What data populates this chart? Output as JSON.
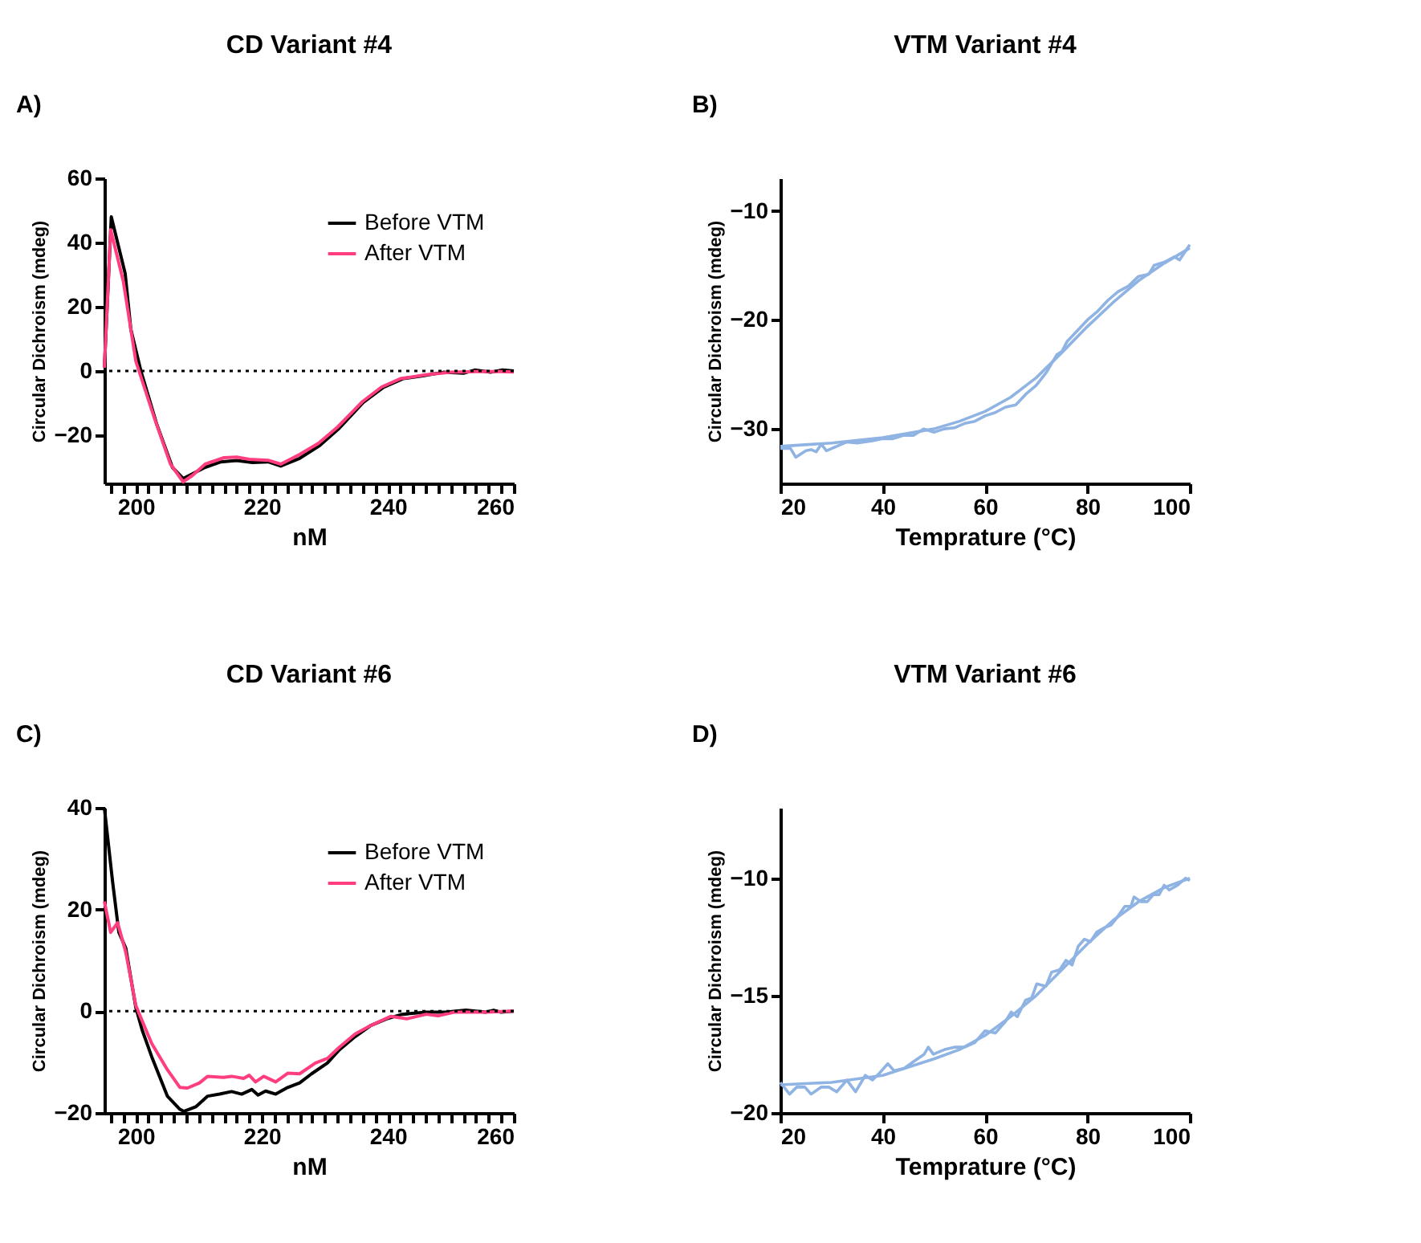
{
  "chart_data": [
    {
      "type": "line",
      "title": "CD Variant #4",
      "xlabel": "nM",
      "ylabel": "Circular Dichroism (mdeg)",
      "annotations": [
        "A)"
      ],
      "legend": "top right",
      "line_style": "solid",
      "grid": false,
      "xlim": [
        195,
        260
      ],
      "ylim": [
        -35,
        60
      ],
      "yticks": [
        -20,
        0,
        20,
        40,
        60
      ],
      "xticks": [
        {
          "value": 196,
          "label": null
        },
        {
          "value": 198,
          "label": null
        },
        200,
        {
          "value": 202,
          "label": null
        },
        {
          "value": 204,
          "label": null
        },
        {
          "value": 206,
          "label": null
        },
        {
          "value": 208,
          "label": null
        },
        {
          "value": 210,
          "label": null
        },
        {
          "value": 212,
          "label": null
        },
        {
          "value": 214,
          "label": null
        },
        {
          "value": 216,
          "label": null
        },
        {
          "value": 218,
          "label": null
        },
        220,
        {
          "value": 222,
          "label": null
        },
        {
          "value": 224,
          "label": null
        },
        {
          "value": 226,
          "label": null
        },
        {
          "value": 228,
          "label": null
        },
        {
          "value": 230,
          "label": null
        },
        {
          "value": 232,
          "label": null
        },
        {
          "value": 234,
          "label": null
        },
        {
          "value": 236,
          "label": null
        },
        {
          "value": 238,
          "label": null
        },
        240,
        {
          "value": 242,
          "label": null
        },
        {
          "value": 244,
          "label": null
        },
        {
          "value": 246,
          "label": null
        },
        {
          "value": 248,
          "label": null
        },
        {
          "value": 250,
          "label": null
        },
        {
          "value": 252,
          "label": null
        },
        {
          "value": 254,
          "label": null
        },
        {
          "value": 256,
          "label": null
        },
        {
          "value": 258,
          "label": null
        },
        260
      ],
      "ref_lines": [
        {
          "axis": "y",
          "value": 0,
          "label": null,
          "color": "#000000",
          "line_style": "dotted"
        }
      ],
      "series": [
        {
          "name": "Before VTM",
          "color": "#000000",
          "x": [
            195,
            196.1,
            198.3,
            199.2,
            200.8,
            203.3,
            205.8,
            207.5,
            209,
            211,
            213.5,
            216,
            218.5,
            221,
            223,
            226,
            229.2,
            232.3,
            236.1,
            239.3,
            242.4,
            245.6,
            248.8,
            252,
            253.8,
            256.3,
            258.2,
            260
          ],
          "values": [
            1,
            48,
            30.4,
            13,
            0,
            -16.5,
            -30,
            -33.5,
            -32,
            -30,
            -28.3,
            -27.9,
            -28.5,
            -28.3,
            -29.6,
            -27.2,
            -23.2,
            -17.8,
            -9.8,
            -5.1,
            -2.4,
            -1.5,
            -0.4,
            -0.7,
            0.3,
            -0.4,
            0.3,
            0
          ]
        },
        {
          "name": "After VTM",
          "color": "#ff3d7f",
          "x": [
            195,
            196,
            198,
            200,
            203,
            205.5,
            207.5,
            209,
            211,
            214,
            216,
            218,
            221,
            223,
            226,
            229,
            232,
            236,
            239,
            242,
            246,
            250,
            254,
            258,
            260
          ],
          "values": [
            1,
            44,
            28,
            3,
            -15,
            -29,
            -34.5,
            -32.5,
            -29,
            -27,
            -26.8,
            -27.5,
            -27.8,
            -29,
            -26,
            -22.5,
            -17.5,
            -9.5,
            -5,
            -2.4,
            -1.2,
            -0.4,
            -0.2,
            -0.2,
            -0.3
          ]
        }
      ]
    },
    {
      "type": "line",
      "title": "VTM Variant #4",
      "xlabel": "Temprature (°C)",
      "ylabel": "Circular Dichroism (mdeg)",
      "annotations": [
        "B)"
      ],
      "line_style": "solid",
      "grid": false,
      "xlim": [
        20,
        100
      ],
      "ylim": [
        -35,
        -7
      ],
      "xticks": [
        20,
        40,
        60,
        80,
        100
      ],
      "yticks": [
        -30,
        -20,
        -10
      ],
      "series": [
        {
          "color": "#8fb3e3",
          "x": [
            20,
            22,
            23,
            25,
            26,
            27,
            28,
            29,
            31,
            33,
            35,
            38,
            40,
            42,
            44,
            46,
            48,
            50,
            52,
            54,
            56,
            58,
            60,
            62,
            64,
            66,
            68,
            70,
            72,
            74,
            75,
            76,
            78,
            80,
            82,
            84,
            86,
            88,
            90,
            92,
            93,
            95,
            97,
            98,
            100
          ],
          "values": [
            -31.8,
            -31.8,
            -32.6,
            -32,
            -31.9,
            -32.1,
            -31.4,
            -32,
            -31.6,
            -31.2,
            -31.3,
            -31.1,
            -30.9,
            -30.9,
            -30.6,
            -30.6,
            -30,
            -30.3,
            -30,
            -29.9,
            -29.5,
            -29.3,
            -28.8,
            -28.5,
            -28,
            -27.8,
            -26.8,
            -26,
            -24.8,
            -23.2,
            -22.9,
            -22,
            -21,
            -20,
            -19.2,
            -18.2,
            -17.4,
            -16.9,
            -16,
            -15.8,
            -15,
            -14.7,
            -14.2,
            -14.5,
            -13.1
          ]
        },
        {
          "color": "#8fb3e3",
          "x": [
            20,
            30,
            40,
            50,
            55,
            60,
            65,
            70,
            75,
            80,
            85,
            90,
            95,
            100
          ],
          "values": [
            -31.6,
            -31.3,
            -30.8,
            -30,
            -29.3,
            -28.4,
            -27.1,
            -25.3,
            -23,
            -20.6,
            -18.4,
            -16.4,
            -14.8,
            -13.4
          ]
        }
      ]
    },
    {
      "type": "line",
      "title": "CD Variant #6",
      "xlabel": "nM",
      "ylabel": "Circular Dichroism (mdeg)",
      "annotations": [
        "C)"
      ],
      "legend": "top right",
      "line_style": "solid",
      "grid": false,
      "xlim": [
        195,
        260
      ],
      "ylim": [
        -20,
        40
      ],
      "yticks": [
        -20,
        0,
        20,
        40
      ],
      "xticks": [
        {
          "value": 196,
          "label": null
        },
        {
          "value": 198,
          "label": null
        },
        200,
        {
          "value": 202,
          "label": null
        },
        {
          "value": 204,
          "label": null
        },
        {
          "value": 206,
          "label": null
        },
        {
          "value": 208,
          "label": null
        },
        {
          "value": 210,
          "label": null
        },
        {
          "value": 212,
          "label": null
        },
        {
          "value": 214,
          "label": null
        },
        {
          "value": 216,
          "label": null
        },
        {
          "value": 218,
          "label": null
        },
        220,
        {
          "value": 222,
          "label": null
        },
        {
          "value": 224,
          "label": null
        },
        {
          "value": 226,
          "label": null
        },
        {
          "value": 228,
          "label": null
        },
        {
          "value": 230,
          "label": null
        },
        {
          "value": 232,
          "label": null
        },
        {
          "value": 234,
          "label": null
        },
        {
          "value": 236,
          "label": null
        },
        {
          "value": 238,
          "label": null
        },
        240,
        {
          "value": 242,
          "label": null
        },
        {
          "value": 244,
          "label": null
        },
        {
          "value": 246,
          "label": null
        },
        {
          "value": 248,
          "label": null
        },
        {
          "value": 250,
          "label": null
        },
        {
          "value": 252,
          "label": null
        },
        {
          "value": 254,
          "label": null
        },
        {
          "value": 256,
          "label": null
        },
        {
          "value": 258,
          "label": null
        },
        260
      ],
      "ref_lines": [
        {
          "axis": "y",
          "value": 0,
          "label": null,
          "color": "#000000",
          "line_style": "dotted"
        }
      ],
      "series": [
        {
          "name": "Before VTM",
          "color": "#000000",
          "x": [
            195,
            196.3,
            197.3,
            198.4,
            200,
            201,
            202.5,
            205,
            207,
            207.6,
            209.5,
            211.4,
            213.3,
            215.2,
            216.8,
            218.4,
            219.4,
            220.6,
            222.2,
            224.1,
            226,
            227.9,
            230.4,
            232.3,
            234.8,
            237.3,
            239.8,
            242.3,
            246.1,
            249.2,
            252.4,
            255.5,
            256.8,
            258,
            260
          ],
          "values": [
            40,
            25.5,
            15.5,
            12.4,
            0.7,
            -3.7,
            -8.9,
            -16.7,
            -19.3,
            -19.7,
            -18.8,
            -16.7,
            -16.3,
            -15.8,
            -16.3,
            -15.4,
            -16.5,
            -15.7,
            -16.3,
            -15,
            -14.1,
            -12.3,
            -10.2,
            -7.6,
            -5,
            -2.8,
            -1.5,
            -0.6,
            -0.2,
            -0.2,
            0.2,
            -0.2,
            0.2,
            -0.2,
            0
          ]
        },
        {
          "name": "After VTM",
          "color": "#ff3d7f",
          "x": [
            195,
            196,
            197.1,
            198.4,
            200,
            201.3,
            202.5,
            205,
            207,
            208.2,
            210.1,
            211.4,
            213.9,
            215.2,
            217.1,
            218,
            219,
            220.3,
            222.2,
            224.1,
            226,
            228.5,
            230.4,
            232.3,
            234.8,
            237.3,
            240.5,
            243,
            246.1,
            248,
            250.5,
            255.5,
            260
          ],
          "values": [
            21.6,
            15.5,
            17.4,
            11.6,
            1.1,
            -2.8,
            -6.3,
            -11.5,
            -15,
            -15.1,
            -14.1,
            -12.8,
            -13,
            -12.8,
            -13.2,
            -12.6,
            -13.9,
            -12.8,
            -13.9,
            -12.2,
            -12.3,
            -10.2,
            -9.3,
            -7.1,
            -4.5,
            -2.8,
            -1,
            -1.5,
            -0.6,
            -0.9,
            -0.2,
            -0.2,
            0
          ]
        }
      ]
    },
    {
      "type": "line",
      "title": "VTM Variant #6",
      "xlabel": "Temprature (°C)",
      "ylabel": "Circular Dichroism (mdeg)",
      "annotations": [
        "D)"
      ],
      "line_style": "solid",
      "grid": false,
      "xlim": [
        20,
        100
      ],
      "ylim": [
        -20,
        -7
      ],
      "xticks": [
        20,
        40,
        60,
        80,
        100
      ],
      "yticks": [
        -20,
        -15,
        -10
      ],
      "series": [
        {
          "color": "#8fb3e3",
          "x": [
            20,
            21.8,
            23.2,
            24.8,
            26,
            28,
            29.5,
            31,
            33,
            34.7,
            36.6,
            38,
            39.4,
            41,
            42.2,
            44.2,
            46.1,
            48.1,
            48.9,
            49.9,
            52.1,
            54,
            56,
            58,
            60,
            62,
            64,
            65.1,
            66.3,
            67.9,
            69.1,
            70.1,
            71.9,
            73,
            74.6,
            75.8,
            77,
            78.2,
            79.4,
            80.6,
            81.8,
            83.4,
            84.6,
            85.7,
            87.3,
            88.5,
            89.1,
            90.5,
            91.7,
            92.9,
            94,
            95,
            96,
            97.6,
            99.2,
            100
          ],
          "values": [
            -18.7,
            -19.2,
            -18.9,
            -18.9,
            -19.2,
            -18.9,
            -18.9,
            -19.1,
            -18.6,
            -19.1,
            -18.4,
            -18.6,
            -18.3,
            -17.9,
            -18.2,
            -18.1,
            -17.8,
            -17.5,
            -17.2,
            -17.5,
            -17.3,
            -17.2,
            -17.2,
            -17,
            -16.5,
            -16.6,
            -16.1,
            -15.7,
            -15.9,
            -15.2,
            -15.1,
            -14.5,
            -14.6,
            -14,
            -13.9,
            -13.5,
            -13.7,
            -12.9,
            -12.6,
            -12.7,
            -12.3,
            -12.1,
            -12,
            -11.7,
            -11.2,
            -11.2,
            -10.8,
            -11,
            -11,
            -10.7,
            -10.7,
            -10.3,
            -10.5,
            -10.3,
            -10,
            -10.1
          ]
        },
        {
          "color": "#8fb3e3",
          "x": [
            20,
            30,
            40,
            50,
            55,
            60,
            65,
            70,
            75,
            80,
            85,
            90,
            95,
            100
          ],
          "values": [
            -18.8,
            -18.7,
            -18.4,
            -17.7,
            -17.3,
            -16.7,
            -15.9,
            -15,
            -13.9,
            -12.8,
            -11.8,
            -11,
            -10.4,
            -10
          ]
        }
      ]
    }
  ]
}
